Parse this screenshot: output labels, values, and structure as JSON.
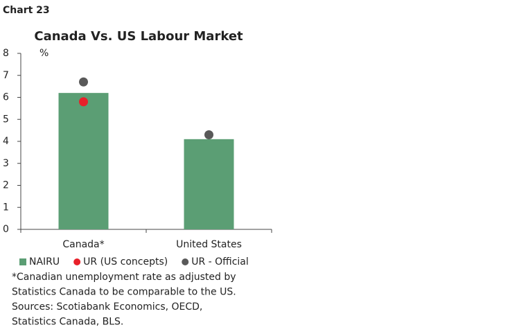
{
  "chart_data": {
    "type": "bar",
    "label": "Chart 23",
    "title": "Canada Vs. US Labour Market",
    "ylabel": "%",
    "categories": [
      "Canada*",
      "United States"
    ],
    "series": [
      {
        "name": "NAIRU",
        "type": "bar",
        "color": "#5b9e74",
        "values": [
          6.2,
          4.1
        ]
      },
      {
        "name": "UR (US concepts)",
        "type": "scatter",
        "color": "#e8202a",
        "values": [
          5.8,
          null
        ]
      },
      {
        "name": "UR - Official",
        "type": "scatter",
        "color": "#595959",
        "values": [
          6.7,
          4.3
        ]
      }
    ],
    "ylim": [
      0,
      8
    ],
    "yticks": [
      0,
      1,
      2,
      3,
      4,
      5,
      6,
      7,
      8
    ],
    "grid": false,
    "notes": [
      "*Canadian unemployment rate as adjusted by",
      "Statistics Canada to be comparable to the US.",
      "Sources: Scotiabank Economics, OECD,",
      "Statistics Canada, BLS."
    ]
  }
}
